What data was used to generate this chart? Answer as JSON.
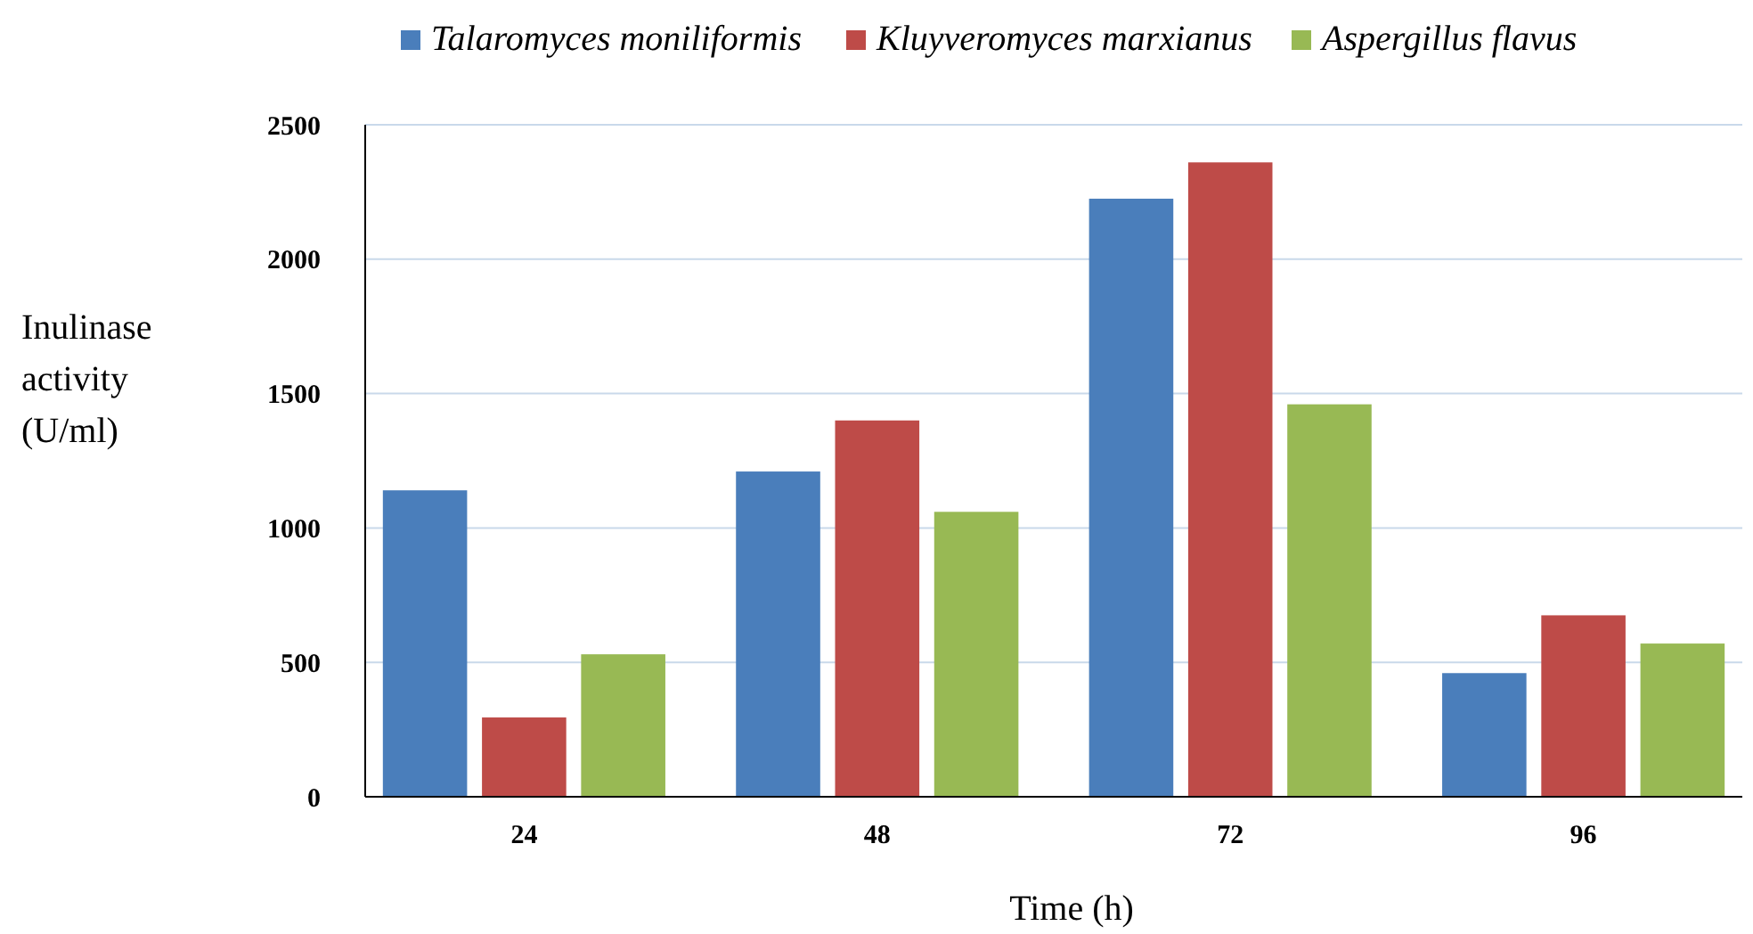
{
  "chart_data": {
    "type": "bar",
    "xlabel": "Time (h)",
    "ylabel": "Inulinase activity (U/ml)",
    "categories": [
      "24",
      "48",
      "72",
      "96"
    ],
    "series": [
      {
        "name": "Talaromyces moniliformis",
        "color": "#4a7ebb",
        "values": [
          1140,
          1210,
          2225,
          460
        ]
      },
      {
        "name": "Kluyveromyces marxianus",
        "color": "#be4b48",
        "values": [
          295,
          1400,
          2360,
          675
        ]
      },
      {
        "name": "Aspergillus flavus",
        "color": "#98b954",
        "values": [
          530,
          1060,
          1460,
          570
        ]
      }
    ],
    "ylim": [
      0,
      2500
    ],
    "yticks": [
      0,
      500,
      1000,
      1500,
      2000,
      2500
    ],
    "grid": "y",
    "legend": "top"
  }
}
